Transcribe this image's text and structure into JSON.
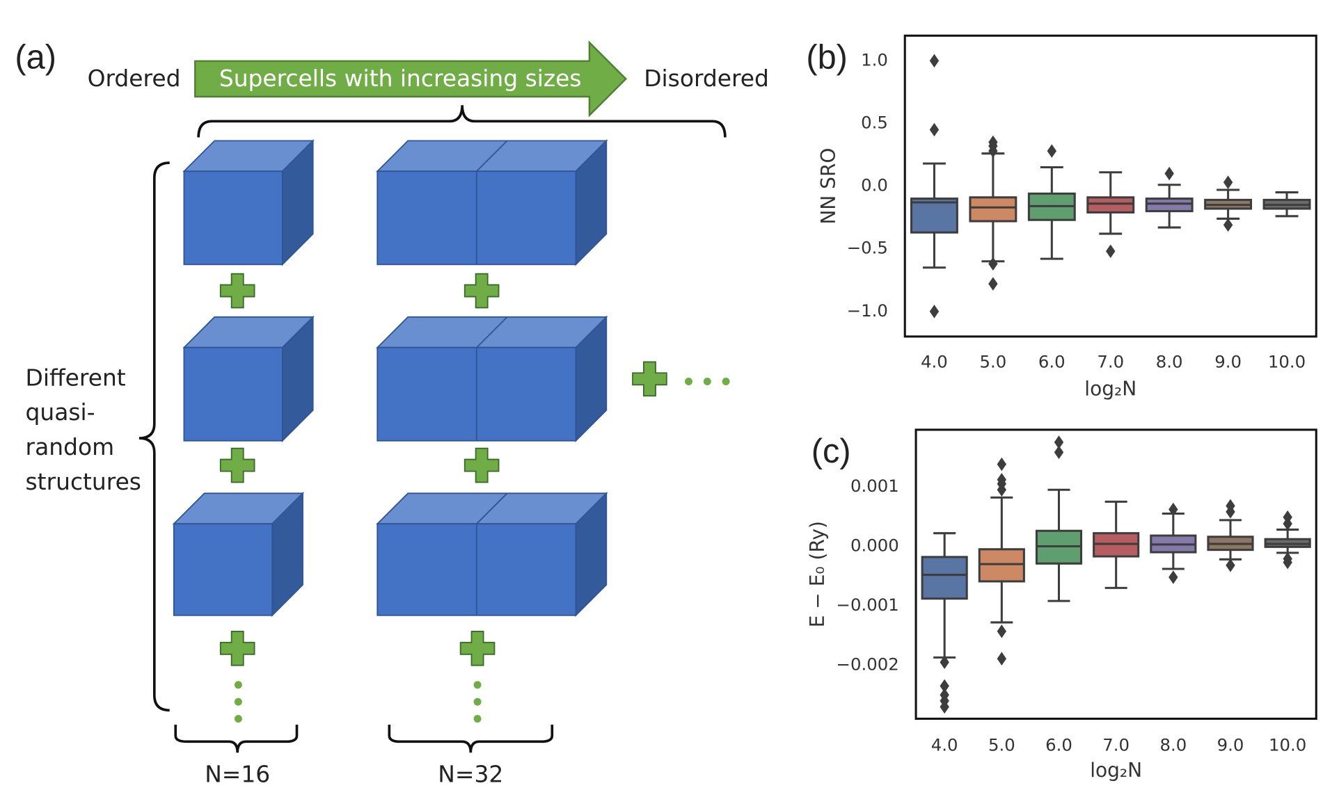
{
  "diagram": {
    "label": "(a)",
    "left": "Ordered",
    "arrow": "Supercells with increasing sizes",
    "right": "Disordered",
    "side": [
      "Different",
      "quasi-",
      "random",
      "structures"
    ],
    "columns": [
      "N=16",
      "N=32"
    ]
  },
  "chart_data": [
    {
      "type": "box",
      "label": "(b)",
      "ylabel": "NN SRO",
      "xlabel": "log₂N",
      "categories": [
        "4.0",
        "5.0",
        "6.0",
        "7.0",
        "8.0",
        "9.0",
        "10.0"
      ],
      "colors": [
        "#5875a4",
        "#cc8963",
        "#5f9e6e",
        "#b55d60",
        "#857aab",
        "#8d7866",
        "#6b6b6b"
      ],
      "ylim": [
        -1.2,
        1.2
      ],
      "yticks": [
        {
          "value": 1.0,
          "label": "1.0"
        },
        0.5,
        {
          "value": 0.0,
          "label": "0.0"
        },
        {
          "value": -0.5,
          "label": "−0.5"
        },
        {
          "value": -1.0,
          "label": "−1.0"
        }
      ],
      "boxes": [
        {
          "whislo": -0.65,
          "q1": -0.37,
          "med": -0.13,
          "q3": -0.1,
          "whishi": 0.18,
          "fliers": [
            1.0,
            0.45,
            -1.0
          ]
        },
        {
          "whislo": -0.6,
          "q1": -0.28,
          "med": -0.17,
          "q3": -0.09,
          "whishi": 0.26,
          "fliers": [
            0.35,
            0.32,
            0.28,
            -0.62,
            -0.78
          ]
        },
        {
          "whislo": -0.58,
          "q1": -0.27,
          "med": -0.16,
          "q3": -0.06,
          "whishi": 0.15,
          "fliers": [
            0.28
          ]
        },
        {
          "whislo": -0.38,
          "q1": -0.21,
          "med": -0.14,
          "q3": -0.09,
          "whishi": 0.11,
          "fliers": [
            -0.52
          ]
        },
        {
          "whislo": -0.33,
          "q1": -0.2,
          "med": -0.14,
          "q3": -0.1,
          "whishi": 0.01,
          "fliers": [
            0.1
          ]
        },
        {
          "whislo": -0.26,
          "q1": -0.18,
          "med": -0.15,
          "q3": -0.11,
          "whishi": -0.03,
          "fliers": [
            0.03,
            -0.31
          ]
        },
        {
          "whislo": -0.24,
          "q1": -0.18,
          "med": -0.15,
          "q3": -0.11,
          "whishi": -0.05,
          "fliers": []
        }
      ]
    },
    {
      "type": "box",
      "label": "(c)",
      "ylabel": "E − E₀ (Ry)",
      "xlabel": "log₂N",
      "categories": [
        "4.0",
        "5.0",
        "6.0",
        "7.0",
        "8.0",
        "9.0",
        "10.0"
      ],
      "colors": [
        "#5875a4",
        "#cc8963",
        "#5f9e6e",
        "#b55d60",
        "#857aab",
        "#8d7866",
        "#6b6b6b"
      ],
      "ylim": [
        -0.0029,
        0.00196
      ],
      "yticks": [
        0.001,
        {
          "value": 0.0,
          "label": "0.000"
        },
        {
          "value": -0.001,
          "label": "−0.001"
        },
        {
          "value": -0.002,
          "label": "−0.002"
        }
      ],
      "boxes": [
        {
          "whislo": -0.00187,
          "q1": -0.00088,
          "med": -0.00048,
          "q3": -0.00018,
          "whishi": 0.00022,
          "fliers": [
            -0.00195,
            -0.00235,
            -0.0025,
            -0.0026,
            -0.0027
          ]
        },
        {
          "whislo": -0.00128,
          "q1": -0.00059,
          "med": -0.0003,
          "q3": -5e-05,
          "whishi": 0.00082,
          "fliers": [
            0.00138,
            0.00112,
            0.00105,
            0.00095,
            -0.00143,
            -0.00189
          ]
        },
        {
          "whislo": -0.00092,
          "q1": -0.00029,
          "med": 0.0,
          "q3": 0.00026,
          "whishi": 0.00095,
          "fliers": [
            0.00175,
            0.00158
          ]
        },
        {
          "whislo": -0.0007,
          "q1": -0.00017,
          "med": 4e-05,
          "q3": 0.00022,
          "whishi": 0.00075,
          "fliers": []
        },
        {
          "whislo": -0.00038,
          "q1": -0.0001,
          "med": 3e-05,
          "q3": 0.00018,
          "whishi": 0.00055,
          "fliers": [
            0.00062,
            -0.00052
          ]
        },
        {
          "whislo": -0.00022,
          "q1": -6e-05,
          "med": 4e-05,
          "q3": 0.00016,
          "whishi": 0.00044,
          "fliers": [
            0.00068,
            0.00058,
            -0.00032
          ]
        },
        {
          "whislo": -0.00011,
          "q1": -1e-05,
          "med": 4e-05,
          "q3": 0.00012,
          "whishi": 0.00028,
          "fliers": [
            0.00049,
            0.00038,
            -0.00021,
            -0.00027
          ]
        }
      ]
    }
  ]
}
